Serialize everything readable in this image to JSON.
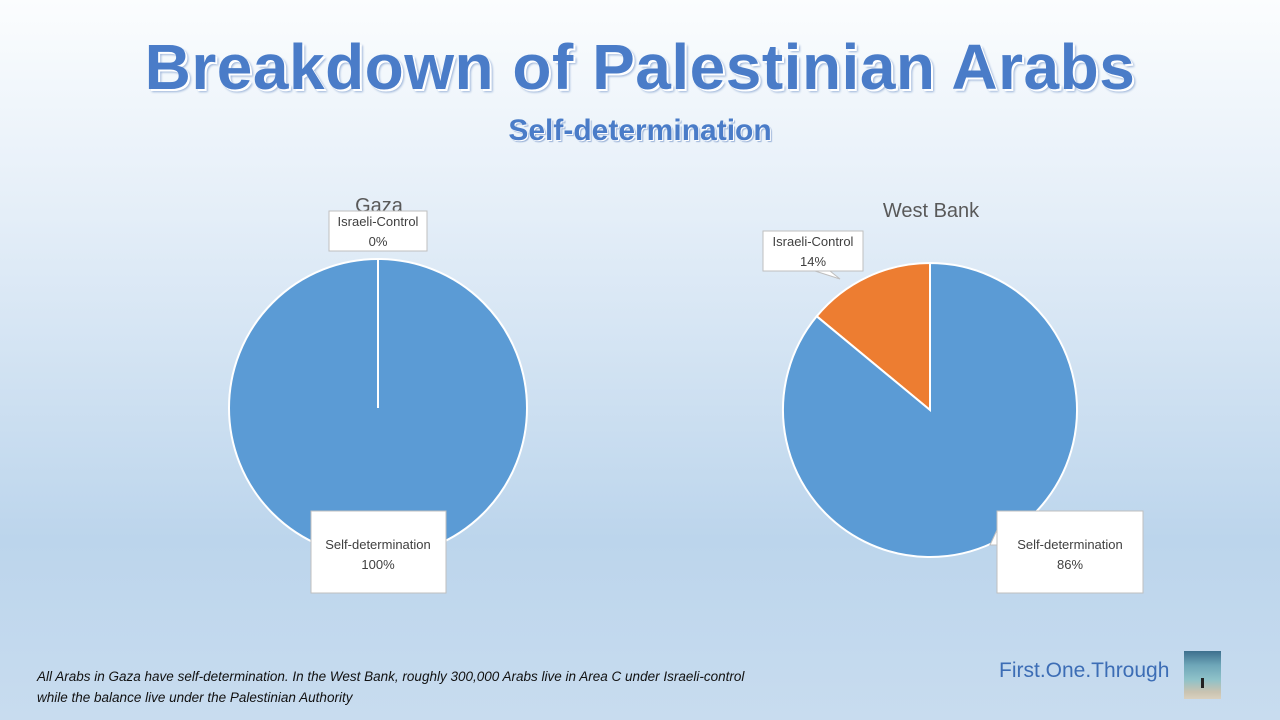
{
  "title": "Breakdown of Palestinian Arabs",
  "subtitle": "Self-determination",
  "chart_data": [
    {
      "type": "pie",
      "title": "Gaza",
      "categories": [
        "Israeli-Control",
        "Self-determination"
      ],
      "values": [
        0,
        100
      ],
      "labels": [
        "0%",
        "100%"
      ],
      "colors": [
        "#ed7d31",
        "#5b9bd5"
      ]
    },
    {
      "type": "pie",
      "title": "West Bank",
      "categories": [
        "Israeli-Control",
        "Self-determination"
      ],
      "values": [
        14,
        86
      ],
      "labels": [
        "14%",
        "86%"
      ],
      "colors": [
        "#ed7d31",
        "#5b9bd5"
      ]
    }
  ],
  "footnote": {
    "line1": "All Arabs in Gaza have self-determination. In the West Bank, roughly 300,000 Arabs live in Area C under Israeli-control",
    "line2": "while the balance live under the Palestinian Authority"
  },
  "brand": "First.One.Through"
}
